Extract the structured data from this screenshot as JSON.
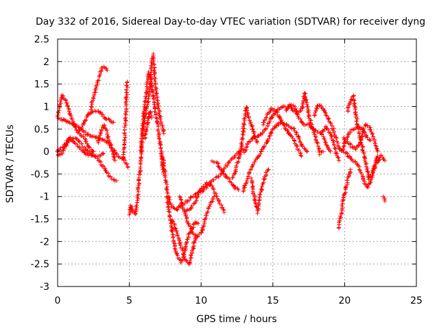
{
  "chart_data": {
    "type": "scatter",
    "title": "Day 332 of 2016, Sidereal Day-to-day VTEC variation (SDTVAR) for receiver dyng",
    "xlabel": "GPS time / hours",
    "ylabel": "SDTVAR / TECUs",
    "xlim": [
      0,
      25
    ],
    "ylim": [
      -3,
      2.5
    ],
    "xticks": [
      0,
      5,
      10,
      15,
      20,
      25
    ],
    "yticks": [
      -3,
      -2.5,
      -2,
      -1.5,
      -1,
      -0.5,
      0,
      0.5,
      1,
      1.5,
      2,
      2.5
    ],
    "xtick_labels": [
      "0",
      "5",
      "10",
      "15",
      "20",
      "25"
    ],
    "ytick_labels": [
      "-3",
      "-2.5",
      "-2",
      "-1.5",
      "-1",
      "-0.5",
      "0",
      "0.5",
      "1",
      "1.5",
      "2",
      "2.5"
    ],
    "grid": true,
    "marker": "+",
    "marker_color": "#ff0000",
    "tracks": [
      [
        [
          0.0,
          0.8
        ],
        [
          0.3,
          1.25
        ],
        [
          0.6,
          1.1
        ],
        [
          0.9,
          0.8
        ],
        [
          1.2,
          0.55
        ],
        [
          1.5,
          0.4
        ],
        [
          1.9,
          0.3
        ],
        [
          2.2,
          0.1
        ],
        [
          2.5,
          0.0
        ]
      ],
      [
        [
          0.0,
          0.75
        ],
        [
          0.4,
          0.7
        ],
        [
          0.8,
          0.65
        ],
        [
          1.2,
          0.6
        ],
        [
          1.6,
          0.5
        ],
        [
          2.0,
          0.4
        ],
        [
          2.4,
          0.35
        ],
        [
          2.8,
          0.3
        ],
        [
          3.2,
          0.25
        ],
        [
          3.5,
          0.2
        ],
        [
          3.8,
          0.1
        ],
        [
          4.2,
          -0.1
        ],
        [
          4.6,
          -0.15
        ],
        [
          4.9,
          -0.35
        ]
      ],
      [
        [
          0.0,
          -0.1
        ],
        [
          0.3,
          -0.05
        ],
        [
          0.6,
          0.15
        ],
        [
          0.9,
          0.3
        ],
        [
          1.3,
          0.3
        ],
        [
          1.7,
          0.15
        ],
        [
          2.1,
          0.0
        ],
        [
          2.5,
          -0.1
        ],
        [
          2.9,
          -0.2
        ],
        [
          3.2,
          -0.35
        ],
        [
          3.5,
          -0.5
        ],
        [
          3.8,
          -0.6
        ],
        [
          4.1,
          -0.65
        ]
      ],
      [
        [
          0.0,
          0.0
        ],
        [
          0.4,
          0.1
        ],
        [
          0.8,
          0.3
        ],
        [
          1.2,
          0.2
        ],
        [
          1.6,
          0.05
        ],
        [
          2.0,
          -0.05
        ],
        [
          2.4,
          -0.1
        ],
        [
          2.8,
          -0.1
        ],
        [
          3.2,
          -0.05
        ]
      ],
      [
        [
          1.5,
          0.45
        ],
        [
          1.8,
          0.6
        ],
        [
          2.1,
          0.8
        ],
        [
          2.4,
          0.9
        ],
        [
          2.7,
          0.9
        ],
        [
          3.0,
          0.85
        ],
        [
          3.3,
          0.75
        ],
        [
          3.6,
          0.7
        ],
        [
          3.9,
          0.65
        ]
      ],
      [
        [
          2.3,
          0.95
        ],
        [
          2.5,
          1.2
        ],
        [
          2.7,
          1.45
        ],
        [
          2.9,
          1.7
        ],
        [
          3.1,
          1.88
        ],
        [
          3.3,
          1.88
        ],
        [
          3.45,
          1.8
        ]
      ],
      [
        [
          2.8,
          0.2
        ],
        [
          3.0,
          0.4
        ],
        [
          3.2,
          0.6
        ],
        [
          3.4,
          0.45
        ],
        [
          3.6,
          0.2
        ],
        [
          3.8,
          0.0
        ],
        [
          4.0,
          -0.2
        ]
      ],
      [
        [
          4.6,
          -0.2
        ],
        [
          4.65,
          0.1
        ],
        [
          4.7,
          0.4
        ],
        [
          4.75,
          0.8
        ],
        [
          4.8,
          1.2
        ],
        [
          4.85,
          1.55
        ]
      ],
      [
        [
          5.0,
          -1.4
        ],
        [
          5.1,
          -1.2
        ],
        [
          5.2,
          -1.3
        ],
        [
          5.4,
          -1.4
        ],
        [
          5.6,
          -1.0
        ],
        [
          5.8,
          -0.1
        ],
        [
          6.0,
          0.6
        ],
        [
          6.15,
          0.9
        ],
        [
          6.3,
          1.1
        ],
        [
          6.45,
          1.5
        ],
        [
          6.55,
          1.9
        ],
        [
          6.65,
          2.15
        ],
        [
          6.8,
          1.5
        ],
        [
          7.0,
          1.0
        ],
        [
          7.2,
          0.7
        ],
        [
          7.4,
          0.4
        ]
      ],
      [
        [
          6.1,
          0.3
        ],
        [
          6.25,
          0.6
        ],
        [
          6.35,
          0.8
        ],
        [
          6.45,
          0.9
        ],
        [
          6.55,
          0.75
        ]
      ],
      [
        [
          5.8,
          0.0
        ],
        [
          6.0,
          0.8
        ],
        [
          6.2,
          1.4
        ],
        [
          6.35,
          1.75
        ],
        [
          6.5,
          1.6
        ],
        [
          6.65,
          1.2
        ],
        [
          6.8,
          0.9
        ],
        [
          6.95,
          0.6
        ],
        [
          7.1,
          0.3
        ],
        [
          7.2,
          0.0
        ],
        [
          7.3,
          -0.3
        ],
        [
          7.4,
          -0.5
        ]
      ],
      [
        [
          7.3,
          -0.1
        ],
        [
          7.45,
          -0.4
        ],
        [
          7.6,
          -0.8
        ],
        [
          7.8,
          -1.1
        ],
        [
          8.0,
          -1.25
        ],
        [
          8.3,
          -1.3
        ],
        [
          8.6,
          -1.2
        ],
        [
          9.0,
          -1.1
        ],
        [
          9.4,
          -1.0
        ],
        [
          9.8,
          -0.9
        ],
        [
          10.2,
          -0.85
        ],
        [
          10.6,
          -0.7
        ],
        [
          11.0,
          -0.6
        ],
        [
          11.4,
          -0.5
        ],
        [
          11.8,
          -0.3
        ],
        [
          12.2,
          -0.15
        ],
        [
          12.6,
          0.0
        ],
        [
          13.0,
          0.05
        ]
      ],
      [
        [
          7.6,
          -1.0
        ],
        [
          7.8,
          -1.4
        ],
        [
          8.0,
          -1.8
        ],
        [
          8.2,
          -2.15
        ],
        [
          8.4,
          -2.35
        ],
        [
          8.6,
          -2.45
        ],
        [
          8.8,
          -2.3
        ],
        [
          9.0,
          -2.0
        ],
        [
          9.2,
          -1.8
        ],
        [
          9.4,
          -1.7
        ],
        [
          9.6,
          -1.55
        ],
        [
          9.8,
          -1.6
        ]
      ],
      [
        [
          8.0,
          -1.5
        ],
        [
          8.3,
          -1.8
        ],
        [
          8.6,
          -2.1
        ],
        [
          8.9,
          -2.4
        ],
        [
          9.2,
          -2.5
        ],
        [
          9.4,
          -2.2
        ],
        [
          9.6,
          -1.9
        ]
      ],
      [
        [
          8.5,
          -1.0
        ],
        [
          8.8,
          -1.3
        ],
        [
          9.1,
          -1.6
        ],
        [
          9.4,
          -1.8
        ],
        [
          9.7,
          -1.9
        ],
        [
          10.0,
          -1.8
        ],
        [
          10.3,
          -1.5
        ],
        [
          10.6,
          -1.2
        ],
        [
          10.9,
          -1.0
        ]
      ],
      [
        [
          9.0,
          -1.3
        ],
        [
          9.3,
          -1.25
        ],
        [
          9.6,
          -1.1
        ],
        [
          9.9,
          -0.9
        ],
        [
          10.2,
          -0.75
        ],
        [
          10.5,
          -0.7
        ],
        [
          10.8,
          -0.8
        ],
        [
          11.1,
          -1.0
        ],
        [
          11.4,
          -1.2
        ],
        [
          11.6,
          -1.35
        ]
      ],
      [
        [
          10.8,
          -0.2
        ],
        [
          11.1,
          -0.25
        ],
        [
          11.4,
          -0.4
        ],
        [
          11.7,
          -0.55
        ],
        [
          12.0,
          -0.65
        ],
        [
          12.3,
          -0.8
        ],
        [
          12.6,
          -0.85
        ]
      ],
      [
        [
          12.2,
          -0.6
        ],
        [
          12.5,
          -0.3
        ],
        [
          12.8,
          0.1
        ],
        [
          12.95,
          0.5
        ],
        [
          13.05,
          0.8
        ],
        [
          13.15,
          1.0
        ],
        [
          13.3,
          0.8
        ],
        [
          13.5,
          0.6
        ],
        [
          13.7,
          0.4
        ],
        [
          13.9,
          0.2
        ]
      ],
      [
        [
          12.9,
          -0.9
        ],
        [
          13.2,
          -0.6
        ],
        [
          13.5,
          -0.35
        ],
        [
          13.8,
          -0.2
        ],
        [
          14.1,
          -0.05
        ],
        [
          14.4,
          0.1
        ],
        [
          14.7,
          0.3
        ],
        [
          15.0,
          0.5
        ],
        [
          15.3,
          0.6
        ],
        [
          15.6,
          0.65
        ],
        [
          15.9,
          0.6
        ],
        [
          16.2,
          0.55
        ],
        [
          16.5,
          0.5
        ],
        [
          16.8,
          0.3
        ],
        [
          17.1,
          0.1
        ],
        [
          17.4,
          0.0
        ]
      ],
      [
        [
          13.5,
          -0.6
        ],
        [
          13.65,
          -0.9
        ],
        [
          13.8,
          -1.2
        ],
        [
          13.95,
          -1.35
        ],
        [
          14.1,
          -1.0
        ],
        [
          14.3,
          -0.7
        ],
        [
          14.5,
          -0.5
        ],
        [
          14.7,
          -0.4
        ]
      ],
      [
        [
          13.0,
          0.0
        ],
        [
          13.3,
          0.2
        ],
        [
          13.6,
          0.3
        ],
        [
          13.9,
          0.35
        ],
        [
          14.2,
          0.4
        ],
        [
          14.5,
          0.5
        ],
        [
          14.8,
          0.7
        ],
        [
          15.1,
          0.85
        ],
        [
          15.4,
          0.95
        ],
        [
          15.7,
          1.0
        ],
        [
          16.0,
          1.0
        ],
        [
          16.3,
          0.95
        ],
        [
          16.6,
          0.85
        ],
        [
          16.9,
          0.7
        ],
        [
          17.2,
          0.6
        ],
        [
          17.5,
          0.6
        ],
        [
          17.8,
          0.5
        ],
        [
          18.1,
          0.45
        ],
        [
          18.4,
          0.4
        ],
        [
          18.7,
          0.2
        ],
        [
          19.0,
          0.0
        ]
      ],
      [
        [
          14.3,
          0.6
        ],
        [
          14.6,
          0.8
        ],
        [
          14.9,
          0.95
        ],
        [
          15.2,
          0.9
        ],
        [
          15.5,
          0.75
        ],
        [
          15.8,
          0.55
        ],
        [
          16.1,
          0.4
        ],
        [
          16.4,
          0.3
        ],
        [
          16.7,
          0.1
        ],
        [
          17.0,
          -0.1
        ]
      ],
      [
        [
          15.9,
          0.9
        ],
        [
          16.2,
          1.05
        ],
        [
          16.5,
          1.0
        ],
        [
          16.8,
          0.85
        ],
        [
          17.05,
          0.95
        ],
        [
          17.2,
          1.3
        ],
        [
          17.35,
          1.1
        ],
        [
          17.5,
          0.8
        ],
        [
          17.7,
          0.6
        ],
        [
          17.9,
          0.4
        ],
        [
          18.1,
          0.2
        ],
        [
          18.3,
          -0.05
        ],
        [
          18.5,
          0.0
        ]
      ],
      [
        [
          17.9,
          0.8
        ],
        [
          18.1,
          1.0
        ],
        [
          18.3,
          1.05
        ],
        [
          18.6,
          0.9
        ],
        [
          18.9,
          0.7
        ],
        [
          19.2,
          0.5
        ],
        [
          19.4,
          0.3
        ],
        [
          19.6,
          0.1
        ],
        [
          19.8,
          0.0
        ],
        [
          20.0,
          0.2
        ],
        [
          20.3,
          0.4
        ],
        [
          20.6,
          0.5
        ],
        [
          20.9,
          0.55
        ],
        [
          21.2,
          0.5
        ],
        [
          21.5,
          0.35
        ],
        [
          21.8,
          0.25
        ]
      ],
      [
        [
          18.4,
          0.4
        ],
        [
          18.7,
          0.55
        ],
        [
          19.0,
          0.4
        ],
        [
          19.3,
          0.1
        ],
        [
          19.5,
          -0.1
        ],
        [
          19.6,
          -0.2
        ]
      ],
      [
        [
          19.6,
          -1.7
        ],
        [
          19.7,
          -1.5
        ],
        [
          19.8,
          -1.25
        ],
        [
          19.95,
          -1.0
        ],
        [
          20.1,
          -0.8
        ],
        [
          20.25,
          -0.6
        ],
        [
          20.4,
          -0.4
        ]
      ],
      [
        [
          19.9,
          0.3
        ],
        [
          20.2,
          0.2
        ],
        [
          20.5,
          0.1
        ],
        [
          20.8,
          0.05
        ],
        [
          21.1,
          0.2
        ],
        [
          21.3,
          0.5
        ],
        [
          21.5,
          0.6
        ],
        [
          21.7,
          0.55
        ],
        [
          21.9,
          0.4
        ],
        [
          22.1,
          0.2
        ],
        [
          22.3,
          0.0
        ]
      ],
      [
        [
          20.2,
          0.9
        ],
        [
          20.4,
          1.1
        ],
        [
          20.6,
          1.25
        ],
        [
          20.75,
          0.9
        ],
        [
          20.9,
          0.6
        ],
        [
          21.1,
          0.3
        ],
        [
          21.3,
          0.0
        ],
        [
          21.5,
          -0.3
        ],
        [
          21.7,
          -0.6
        ],
        [
          21.9,
          -0.5
        ],
        [
          22.1,
          -0.3
        ],
        [
          22.3,
          -0.1
        ]
      ],
      [
        [
          20.0,
          0.0
        ],
        [
          20.3,
          -0.1
        ],
        [
          20.6,
          -0.2
        ],
        [
          20.9,
          -0.3
        ],
        [
          21.2,
          -0.5
        ],
        [
          21.4,
          -0.7
        ],
        [
          21.6,
          -0.8
        ],
        [
          21.8,
          -0.7
        ],
        [
          22.0,
          -0.4
        ],
        [
          22.2,
          -0.3
        ],
        [
          22.5,
          -0.1
        ],
        [
          22.8,
          -0.2
        ]
      ],
      [
        [
          22.7,
          -1.0
        ],
        [
          22.8,
          -1.1
        ]
      ]
    ]
  }
}
